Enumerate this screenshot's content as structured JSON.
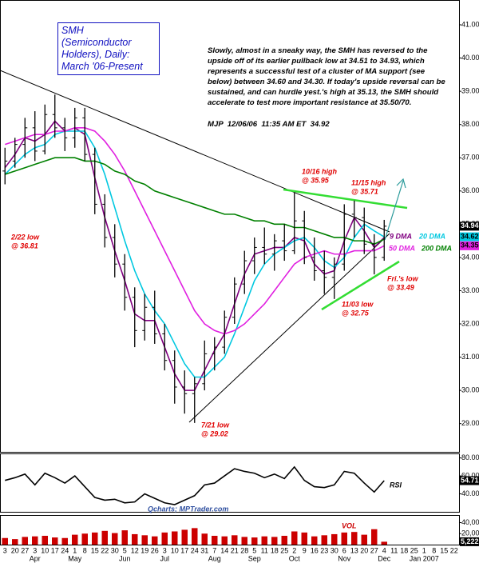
{
  "chart_data": [
    {
      "type": "ohlc",
      "title": "SMH (Semiconductor Holders), Daily: March '06-Present",
      "commentary": "Slowly, almost in a sneaky way, the SMH has reversed to the upside off of its earlier pullback low at 34.51 to 34.93, which represents a successful test of a cluster of MA support (see below) between 34.60 and 34.30.  If today's upside reversal can be sustained, and can hurdle yest.'s high at 35.13, the SMH should accelerate to test more important resistance at 35.50/70.",
      "signature": "MJP  12/06/06  11:35 AM ET  34.92",
      "source": "Qcharts; MPTrader.com",
      "categories": [
        "3",
        "20",
        "27",
        "3",
        "10",
        "17",
        "24",
        "1",
        "8",
        "15",
        "22",
        "30",
        "5",
        "12",
        "19",
        "26",
        "3",
        "10",
        "17",
        "24",
        "31",
        "7",
        "14",
        "21",
        "28",
        "5",
        "11",
        "18",
        "25",
        "2",
        "9",
        "16",
        "23",
        "30",
        "6",
        "13",
        "20",
        "27",
        "4",
        "11",
        "18",
        "25",
        "1",
        "8",
        "15",
        "22"
      ],
      "months": [
        "Apr",
        "May",
        "Jun",
        "Jul",
        "Aug",
        "Sep",
        "Oct",
        "Nov",
        "Dec",
        "Jan 2007"
      ],
      "open": [
        36.6,
        36.9,
        37.4,
        37.9,
        37.2,
        38.3,
        37.9,
        37.6,
        38.2,
        37.1,
        35.6,
        34.6,
        33.8,
        32.8,
        31.8,
        32.5,
        31.7,
        30.9,
        30.1,
        29.9,
        30.2,
        31.1,
        31.3,
        32.2,
        33.2,
        33.9,
        34.3,
        34.1,
        34.5,
        34.2,
        35.1,
        34.0,
        33.6,
        33.4,
        33.8,
        35.3,
        35.2,
        34.4,
        34.0,
        null,
        null,
        null,
        null,
        null,
        null,
        null
      ],
      "high": [
        37.3,
        37.6,
        38.2,
        38.4,
        38.6,
        38.9,
        38.2,
        38.5,
        38.5,
        37.3,
        35.9,
        35.0,
        34.1,
        33.1,
        32.9,
        33.0,
        32.0,
        31.2,
        30.6,
        30.4,
        31.5,
        31.6,
        32.4,
        33.4,
        34.2,
        34.6,
        34.9,
        34.7,
        35.0,
        35.95,
        35.4,
        34.6,
        34.2,
        34.0,
        35.6,
        35.71,
        35.5,
        34.7,
        35.13,
        null,
        null,
        null,
        null,
        null,
        null,
        null
      ],
      "low": [
        36.2,
        36.7,
        37.0,
        36.9,
        37.1,
        37.6,
        37.2,
        37.3,
        36.9,
        35.3,
        34.3,
        33.4,
        32.4,
        31.3,
        31.5,
        31.4,
        30.6,
        29.6,
        29.3,
        29.02,
        30.0,
        30.6,
        31.1,
        32.0,
        32.9,
        33.5,
        33.8,
        33.6,
        33.9,
        34.1,
        33.8,
        33.3,
        32.9,
        32.75,
        33.6,
        34.6,
        34.1,
        33.49,
        33.9,
        null,
        null,
        null,
        null,
        null,
        null,
        null
      ],
      "close": [
        36.9,
        37.4,
        37.9,
        37.2,
        38.3,
        37.9,
        37.6,
        38.2,
        37.1,
        35.6,
        34.6,
        33.8,
        32.8,
        31.8,
        32.5,
        31.7,
        30.9,
        30.1,
        29.9,
        30.2,
        31.1,
        31.3,
        32.2,
        33.2,
        33.9,
        34.3,
        34.1,
        34.5,
        34.2,
        35.1,
        34.0,
        33.6,
        33.4,
        33.8,
        35.3,
        35.2,
        34.4,
        34.0,
        34.94,
        null,
        null,
        null,
        null,
        null,
        null,
        null
      ],
      "color": "#000000",
      "series": [
        {
          "name": "9 DMA",
          "color": "#800080",
          "values": [
            36.7,
            37.1,
            37.6,
            37.5,
            37.7,
            38.1,
            37.8,
            37.9,
            37.7,
            36.4,
            35.2,
            34.2,
            33.3,
            32.3,
            32.1,
            32.1,
            31.3,
            30.5,
            30.0,
            30.0,
            30.6,
            31.2,
            31.7,
            32.6,
            33.5,
            34.1,
            34.2,
            34.3,
            34.3,
            34.6,
            34.5,
            33.8,
            33.5,
            33.6,
            34.5,
            35.2,
            34.8,
            34.3,
            34.6,
            null,
            null,
            null,
            null,
            null,
            null,
            null
          ]
        },
        {
          "name": "20 DMA",
          "color": "#00c8e0",
          "box": true,
          "values": [
            36.5,
            36.8,
            37.1,
            37.3,
            37.4,
            37.7,
            37.8,
            37.8,
            37.8,
            37.3,
            36.5,
            35.5,
            34.5,
            33.6,
            32.9,
            32.4,
            32.0,
            31.4,
            30.8,
            30.4,
            30.4,
            30.7,
            31.0,
            31.7,
            32.5,
            33.3,
            33.8,
            34.1,
            34.3,
            34.5,
            34.6,
            34.3,
            33.9,
            33.7,
            34.0,
            34.6,
            35.0,
            34.8,
            34.62,
            null,
            null,
            null,
            null,
            null,
            null,
            null
          ]
        },
        {
          "name": "50 DMA",
          "color": "#e020e0",
          "box": true,
          "values": [
            37.4,
            37.5,
            37.6,
            37.7,
            37.7,
            37.8,
            37.8,
            37.9,
            37.9,
            37.8,
            37.5,
            37.1,
            36.6,
            36.0,
            35.4,
            34.8,
            34.2,
            33.6,
            33.0,
            32.4,
            32.0,
            31.8,
            31.7,
            31.8,
            32.0,
            32.3,
            32.6,
            33.0,
            33.4,
            33.8,
            34.0,
            34.1,
            34.2,
            34.1,
            34.1,
            34.2,
            34.2,
            34.2,
            34.35,
            null,
            null,
            null,
            null,
            null,
            null,
            null
          ]
        },
        {
          "name": "200 DMA",
          "color": "#008000",
          "values": [
            36.5,
            36.6,
            36.7,
            36.8,
            36.9,
            37.0,
            37.0,
            37.0,
            36.9,
            36.9,
            36.8,
            36.6,
            36.5,
            36.3,
            36.2,
            36.0,
            35.9,
            35.8,
            35.7,
            35.6,
            35.5,
            35.4,
            35.3,
            35.3,
            35.2,
            35.1,
            35.1,
            35.0,
            35.0,
            34.9,
            34.9,
            34.8,
            34.7,
            34.6,
            34.6,
            34.5,
            34.5,
            34.4,
            34.55,
            null,
            null,
            null,
            null,
            null,
            null,
            null
          ]
        }
      ],
      "annotations": [
        {
          "lines": [
            "2/22 low",
            "@ 36.81"
          ]
        },
        {
          "lines": [
            "7/21 low",
            "@ 29.02"
          ]
        },
        {
          "lines": [
            "10/16 high",
            "@ 35.95"
          ]
        },
        {
          "lines": [
            "11/15 high",
            "@ 35.71"
          ]
        },
        {
          "lines": [
            "11/03 low",
            "@ 32.75"
          ]
        },
        {
          "lines": [
            "Fri.'s low",
            "@ 33.49"
          ]
        }
      ],
      "ylim": [
        28.15,
        41.65
      ],
      "yticks": [
        {
          "value": 29,
          "label": "29.00"
        },
        {
          "value": 30,
          "label": "30.00"
        },
        {
          "value": 31,
          "label": "31.00"
        },
        {
          "value": 32,
          "label": "32.00"
        },
        {
          "value": 33,
          "label": "33.00"
        },
        {
          "value": 34,
          "label": "34.00"
        },
        {
          "value": 35,
          "label": "35.00"
        },
        {
          "value": 36,
          "label": "36.00"
        },
        {
          "value": 37,
          "label": "37.00"
        },
        {
          "value": 38,
          "label": "38.00"
        },
        {
          "value": 39,
          "label": "39.00"
        },
        {
          "value": 40,
          "label": "40.00"
        },
        {
          "value": 41,
          "label": "41.00"
        }
      ]
    },
    {
      "type": "line",
      "name": "RSI",
      "color": "#000000",
      "values": [
        55,
        58,
        62,
        50,
        63,
        58,
        52,
        60,
        48,
        36,
        33,
        34,
        30,
        31,
        40,
        35,
        30,
        28,
        33,
        38,
        50,
        52,
        60,
        68,
        65,
        63,
        58,
        62,
        57,
        70,
        55,
        48,
        47,
        50,
        65,
        63,
        52,
        42,
        54.71,
        null,
        null,
        null,
        null,
        null,
        null,
        null
      ],
      "ylim": [
        20,
        85
      ],
      "yticks": [
        {
          "value": 40,
          "label": "40.00"
        },
        {
          "value": 60,
          "label": "60.00"
        },
        {
          "value": 80,
          "label": "80.00"
        }
      ]
    },
    {
      "type": "bar",
      "name": "VOL",
      "color": "#cc0000",
      "values": [
        12000,
        10000,
        14000,
        15000,
        16000,
        13000,
        12000,
        18000,
        20000,
        22000,
        25000,
        21000,
        26000,
        19000,
        17000,
        15000,
        22000,
        24000,
        27000,
        30000,
        20000,
        16000,
        15000,
        17000,
        14000,
        13000,
        15000,
        14000,
        16000,
        24000,
        22000,
        15000,
        17000,
        19000,
        22000,
        23000,
        18000,
        28000,
        5222,
        null,
        null,
        null,
        null,
        null,
        null,
        null
      ],
      "value_labels": [
        null,
        null,
        null,
        null,
        null,
        null,
        null,
        null,
        null,
        null,
        null,
        null,
        null,
        null,
        null,
        null,
        null,
        null,
        null,
        null,
        null,
        null,
        null,
        null,
        null,
        null,
        null,
        null,
        null,
        null,
        null,
        null,
        null,
        null,
        null,
        null,
        null,
        null,
        "5,222",
        null,
        null,
        null,
        null,
        null,
        null,
        null
      ],
      "ylim": [
        0,
        48000
      ],
      "yticks": [
        {
          "value": 20000,
          "label": "20,000"
        },
        {
          "value": 40000,
          "label": "40,000"
        }
      ]
    }
  ]
}
